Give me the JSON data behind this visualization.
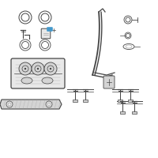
{
  "bg_color": "#ffffff",
  "line_color": "#999999",
  "dark_line": "#444444",
  "med_line": "#666666",
  "highlight_color": "#4499cc",
  "fill_light": "#e8e8e8",
  "fill_med": "#d4d4d4",
  "fill_hatch": "#cccccc"
}
